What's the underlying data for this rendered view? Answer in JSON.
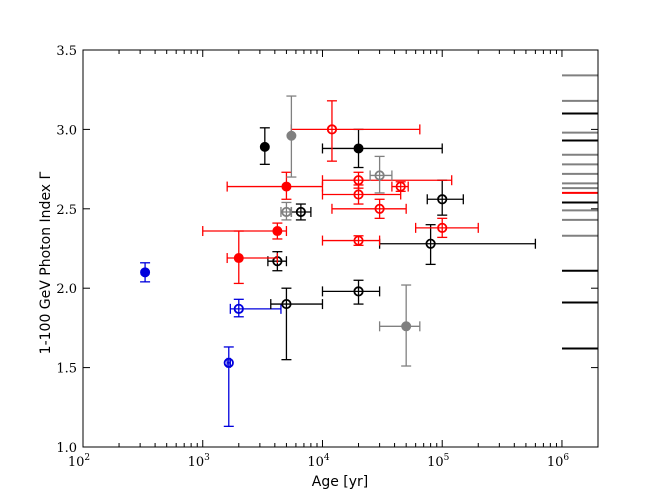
{
  "chart_data": {
    "type": "scatter",
    "title": "",
    "xlabel": "Age [yr]",
    "ylabel": "1-100 GeV Photon Index Γ",
    "xscale": "log",
    "xlim": [
      100,
      2000000
    ],
    "ylim": [
      1.0,
      3.5
    ],
    "x_ticks": [
      {
        "value": 100,
        "base": "10",
        "exp": "2"
      },
      {
        "value": 1000,
        "base": "10",
        "exp": "3"
      },
      {
        "value": 10000,
        "base": "10",
        "exp": "4"
      },
      {
        "value": 100000,
        "base": "10",
        "exp": "5"
      },
      {
        "value": 1000000,
        "base": "10",
        "exp": "6"
      }
    ],
    "y_ticks": [
      {
        "value": 1.0,
        "label": "1.0"
      },
      {
        "value": 1.5,
        "label": "1.5"
      },
      {
        "value": 2.0,
        "label": "2.0"
      },
      {
        "value": 2.5,
        "label": "2.5"
      },
      {
        "value": 3.0,
        "label": "3.0"
      },
      {
        "value": 3.5,
        "label": "3.5"
      }
    ],
    "colors": {
      "black": "#000000",
      "red": "#ff0000",
      "gray": "#808080",
      "blue": "#0000dd"
    },
    "points": [
      {
        "x": 330,
        "y": 2.1,
        "xlo": 330,
        "xhi": 330,
        "ylo": 2.04,
        "yhi": 2.16,
        "color": "blue",
        "filled": true
      },
      {
        "x": 1650,
        "y": 1.53,
        "xlo": 1600,
        "xhi": 1700,
        "ylo": 1.13,
        "yhi": 1.63,
        "color": "blue",
        "filled": false
      },
      {
        "x": 2000,
        "y": 1.87,
        "xlo": 1700,
        "xhi": 4500,
        "ylo": 1.82,
        "yhi": 1.93,
        "color": "blue",
        "filled": false
      },
      {
        "x": 3300,
        "y": 2.89,
        "xlo": 3300,
        "xhi": 3300,
        "ylo": 2.78,
        "yhi": 3.01,
        "color": "black",
        "filled": true
      },
      {
        "x": 20000,
        "y": 2.88,
        "xlo": 10000,
        "xhi": 100000,
        "ylo": 2.76,
        "yhi": 3.0,
        "color": "black",
        "filled": true
      },
      {
        "x": 6600,
        "y": 2.48,
        "xlo": 5500,
        "xhi": 8000,
        "ylo": 2.43,
        "yhi": 2.53,
        "color": "black",
        "filled": false
      },
      {
        "x": 4200,
        "y": 2.17,
        "xlo": 3500,
        "xhi": 5000,
        "ylo": 2.11,
        "yhi": 2.23,
        "color": "black",
        "filled": false
      },
      {
        "x": 5000,
        "y": 1.9,
        "xlo": 3700,
        "xhi": 10000,
        "ylo": 1.55,
        "yhi": 2.0,
        "color": "black",
        "filled": false
      },
      {
        "x": 20000,
        "y": 1.98,
        "xlo": 10000,
        "xhi": 30000,
        "ylo": 1.9,
        "yhi": 2.05,
        "color": "black",
        "filled": false
      },
      {
        "x": 100000,
        "y": 2.56,
        "xlo": 75000,
        "xhi": 150000,
        "ylo": 2.46,
        "yhi": 2.68,
        "color": "black",
        "filled": false
      },
      {
        "x": 80000,
        "y": 2.28,
        "xlo": 30000,
        "xhi": 600000,
        "ylo": 2.15,
        "yhi": 2.4,
        "color": "black",
        "filled": false
      },
      {
        "x": 5000,
        "y": 2.64,
        "xlo": 1600,
        "xhi": 10000,
        "ylo": 2.56,
        "yhi": 2.73,
        "color": "red",
        "filled": true
      },
      {
        "x": 4200,
        "y": 2.36,
        "xlo": 1000,
        "xhi": 5000,
        "ylo": 2.31,
        "yhi": 2.41,
        "color": "red",
        "filled": true
      },
      {
        "x": 2000,
        "y": 2.19,
        "xlo": 1600,
        "xhi": 4200,
        "ylo": 2.03,
        "yhi": 2.36,
        "color": "red",
        "filled": true
      },
      {
        "x": 12000,
        "y": 3.0,
        "xlo": 5500,
        "xhi": 65000,
        "ylo": 2.8,
        "yhi": 3.18,
        "color": "red",
        "filled": false
      },
      {
        "x": 20000,
        "y": 2.68,
        "xlo": 10000,
        "xhi": 120000,
        "ylo": 2.63,
        "yhi": 2.73,
        "color": "red",
        "filled": false
      },
      {
        "x": 20000,
        "y": 2.59,
        "xlo": 10000,
        "xhi": 45000,
        "ylo": 2.53,
        "yhi": 2.65,
        "color": "red",
        "filled": false
      },
      {
        "x": 30000,
        "y": 2.5,
        "xlo": 12000,
        "xhi": 50000,
        "ylo": 2.44,
        "yhi": 2.56,
        "color": "red",
        "filled": false
      },
      {
        "x": 45000,
        "y": 2.64,
        "xlo": 38000,
        "xhi": 52000,
        "ylo": 2.61,
        "yhi": 2.67,
        "color": "red",
        "filled": false
      },
      {
        "x": 100000,
        "y": 2.38,
        "xlo": 60000,
        "xhi": 200000,
        "ylo": 2.32,
        "yhi": 2.44,
        "color": "red",
        "filled": false
      },
      {
        "x": 20000,
        "y": 2.3,
        "xlo": 10000,
        "xhi": 30000,
        "ylo": 2.27,
        "yhi": 2.33,
        "color": "red",
        "filled": false
      },
      {
        "x": 5500,
        "y": 2.96,
        "xlo": 5500,
        "xhi": 5500,
        "ylo": 2.7,
        "yhi": 3.21,
        "color": "gray",
        "filled": true
      },
      {
        "x": 5000,
        "y": 2.48,
        "xlo": 4500,
        "xhi": 5500,
        "ylo": 2.43,
        "yhi": 2.54,
        "color": "gray",
        "filled": false
      },
      {
        "x": 30000,
        "y": 2.71,
        "xlo": 25000,
        "xhi": 38000,
        "ylo": 2.6,
        "yhi": 2.83,
        "color": "gray",
        "filled": false
      },
      {
        "x": 50000,
        "y": 1.76,
        "xlo": 30000,
        "xhi": 65000,
        "ylo": 1.51,
        "yhi": 2.02,
        "color": "gray",
        "filled": true
      }
    ],
    "side_marks": [
      {
        "y": 3.34,
        "color": "gray"
      },
      {
        "y": 3.18,
        "color": "gray"
      },
      {
        "y": 3.1,
        "color": "black"
      },
      {
        "y": 2.98,
        "color": "gray"
      },
      {
        "y": 2.93,
        "color": "black"
      },
      {
        "y": 2.84,
        "color": "gray"
      },
      {
        "y": 2.78,
        "color": "gray"
      },
      {
        "y": 2.72,
        "color": "gray"
      },
      {
        "y": 2.66,
        "color": "gray"
      },
      {
        "y": 2.63,
        "color": "gray"
      },
      {
        "y": 2.6,
        "color": "red"
      },
      {
        "y": 2.54,
        "color": "black"
      },
      {
        "y": 2.49,
        "color": "gray"
      },
      {
        "y": 2.43,
        "color": "gray"
      },
      {
        "y": 2.33,
        "color": "gray"
      },
      {
        "y": 2.11,
        "color": "black"
      },
      {
        "y": 1.91,
        "color": "black"
      },
      {
        "y": 1.62,
        "color": "black"
      }
    ]
  }
}
